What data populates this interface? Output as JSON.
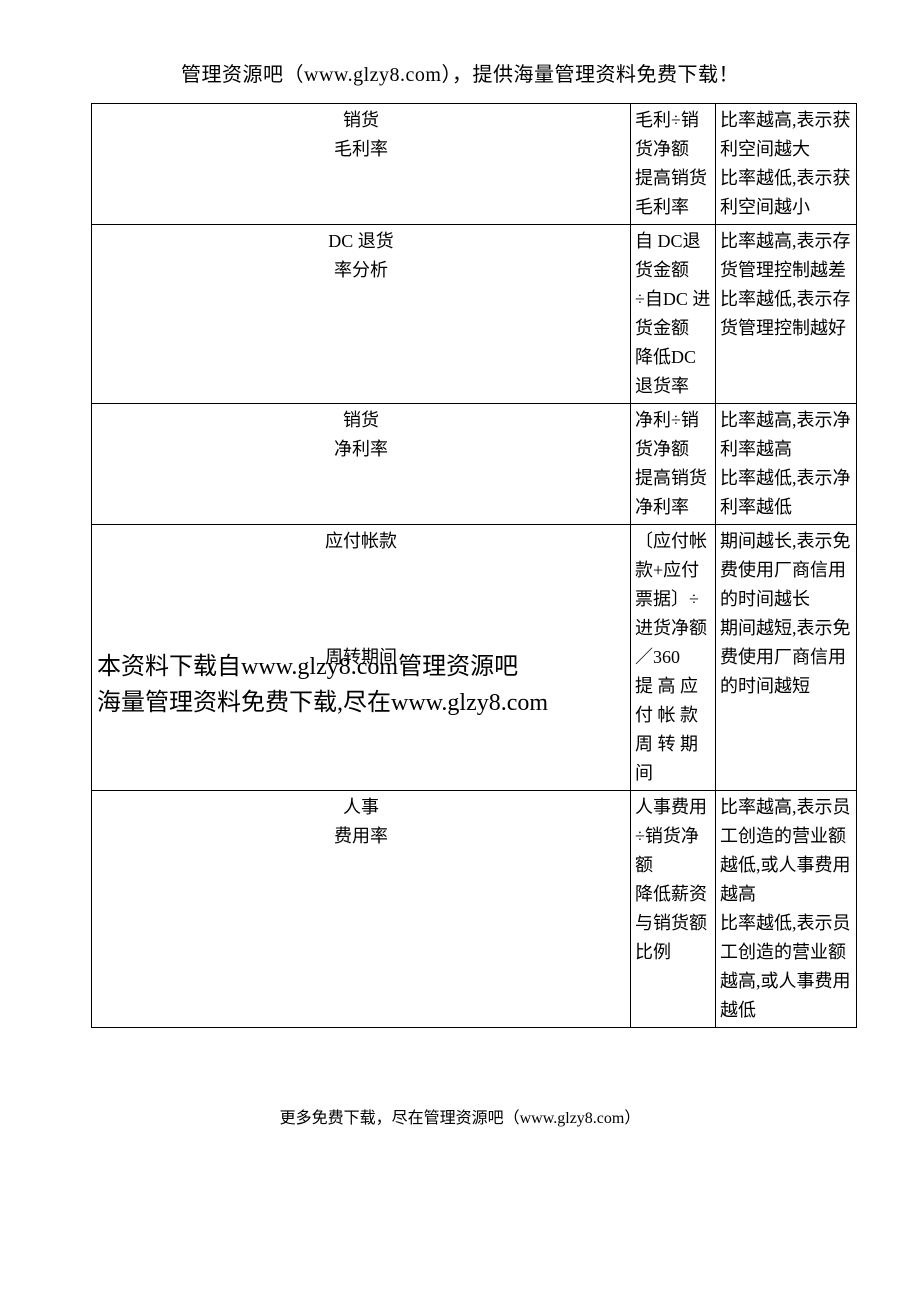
{
  "header": "管理资源吧（www.glzy8.com），提供海量管理资料免费下载！",
  "footer": "更多免费下载，尽在管理资源吧（www.glzy8.com）",
  "watermark_line1": "本资料下载自www.glzy8.com管理资源吧",
  "watermark_line2": "海量管理资料免费下载,尽在www.glzy8.com",
  "rows": [
    {
      "c0": "销货\n毛利率",
      "c0_narrow": false,
      "c1": "毛利÷销货净额\n提高销货毛利率",
      "c2": "比率越高,表示获利空间越大\n比率越低,表示获利空间越小"
    },
    {
      "c0": "DC 退货\n率分析",
      "c0_narrow": false,
      "c1": "自 DC退货金额\n÷自DC 进货金额\n降低DC 退货率",
      "c2": "比率越高,表示存货管理控制越差\n比率越低,表示存货管理控制越好"
    },
    {
      "c0": "销货\n净利率",
      "c0_narrow": false,
      "c1": "净利÷销货净额\n提高销货净利率",
      "c2": "比率越高,表示净利率越高\n比率越低,表示净利率越低"
    },
    {
      "c0": "应付帐款\n\n\n\n周转期间",
      "c0_narrow": false,
      "c1": "〔应付帐款+应付票据〕÷进货净额／360\n提 高 应 付 帐 款 周 转 期 间",
      "c2": "期间越长,表示免费使用厂商信用的时间越长\n期间越短,表示免费使用厂商信用的时间越短"
    },
    {
      "c0": "人事\n费用率",
      "c0_narrow": true,
      "c1": "人事费用÷销货净额\n降低薪资与销货额比例",
      "c2": "比率越高,表示员工创造的营业额越低,或人事费用越高\n比率越低,表示员工创造的营业额越高,或人事费用越低\n"
    }
  ]
}
